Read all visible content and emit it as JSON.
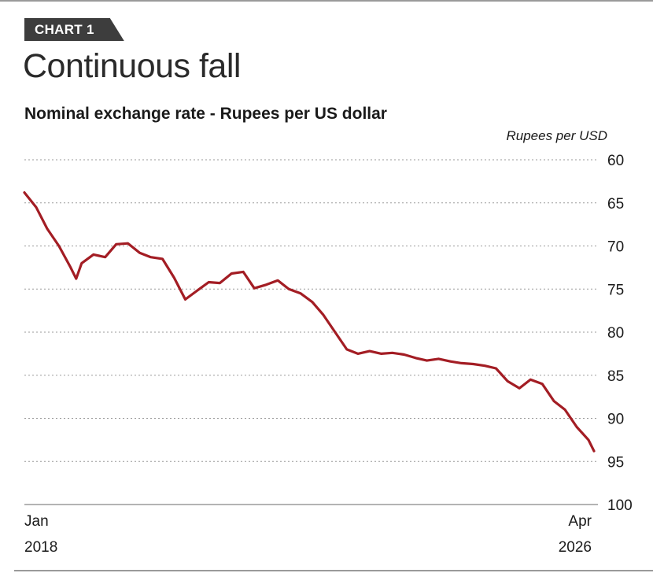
{
  "tag": "CHART 1",
  "title": "Continuous fall",
  "subtitle": "Nominal exchange rate - Rupees per US dollar",
  "colors": {
    "line": "#a31d24",
    "tag_bg": "#3d3d3d",
    "grid": "#9a9a9a"
  },
  "chart_data": {
    "type": "line",
    "ylabel": "Rupees per USD",
    "ylim": [
      60,
      100
    ],
    "y_inverted": true,
    "yticks": [
      60,
      65,
      70,
      75,
      80,
      85,
      90,
      95,
      100
    ],
    "grid": "dotted horizontal",
    "x_range": [
      "Jan 2018",
      "Apr 2026"
    ],
    "x_tick_labels": [
      {
        "month": "Jan",
        "year": "2018"
      },
      {
        "month": "Apr",
        "year": "2026"
      }
    ],
    "series": [
      {
        "x": [
          2018.0,
          2018.17,
          2018.33,
          2018.5,
          2018.67,
          2018.75,
          2018.83,
          2019.0,
          2019.17,
          2019.33,
          2019.5,
          2019.67,
          2019.83,
          2020.0,
          2020.17,
          2020.33,
          2020.5,
          2020.67,
          2020.83,
          2021.0,
          2021.17,
          2021.33,
          2021.5,
          2021.67,
          2021.83,
          2022.0,
          2022.17,
          2022.33,
          2022.5,
          2022.67,
          2022.83,
          2023.0,
          2023.17,
          2023.33,
          2023.5,
          2023.67,
          2023.83,
          2024.0,
          2024.17,
          2024.33,
          2024.5,
          2024.67,
          2024.83,
          2025.0,
          2025.17,
          2025.33,
          2025.5,
          2025.67,
          2025.83,
          2026.0,
          2026.17,
          2026.25
        ],
        "values": [
          63.8,
          65.5,
          68.0,
          70.0,
          72.5,
          73.8,
          72.0,
          71.0,
          71.3,
          69.8,
          69.7,
          70.8,
          71.3,
          71.5,
          73.7,
          76.2,
          75.2,
          74.2,
          74.3,
          73.2,
          73.0,
          74.9,
          74.5,
          74.0,
          75.0,
          75.5,
          76.5,
          78.0,
          80.0,
          82.0,
          82.5,
          82.2,
          82.5,
          82.4,
          82.6,
          83.0,
          83.3,
          83.1,
          83.4,
          83.6,
          83.7,
          83.9,
          84.2,
          85.7,
          86.5,
          85.5,
          86.0,
          88.0,
          89.0,
          91.0,
          92.5,
          93.8
        ]
      }
    ]
  }
}
